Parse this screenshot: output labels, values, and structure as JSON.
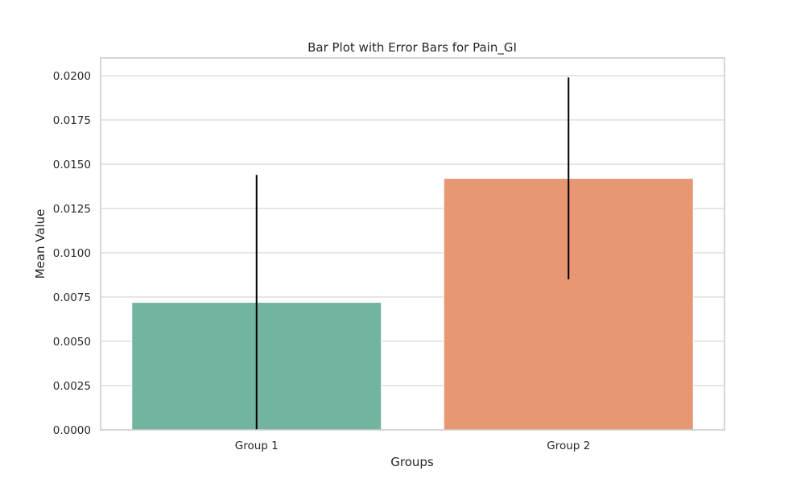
{
  "chart_data": {
    "type": "bar",
    "title": "Bar Plot with Error Bars for Pain_GI",
    "xlabel": "Groups",
    "ylabel": "Mean Value",
    "categories": [
      "Group 1",
      "Group 2"
    ],
    "values": [
      0.0072,
      0.0142
    ],
    "error_bars": [
      {
        "low": 0.0,
        "high": 0.0144
      },
      {
        "low": 0.0085,
        "high": 0.0199
      }
    ],
    "colors": [
      "#73b4a0",
      "#e89774"
    ],
    "error_color": "#000000",
    "ylim": [
      0,
      0.021
    ],
    "yticks": [
      0.0,
      0.0025,
      0.005,
      0.0075,
      0.01,
      0.0125,
      0.015,
      0.0175,
      0.02
    ],
    "ytick_labels": [
      "0.0000",
      "0.0025",
      "0.0050",
      "0.0075",
      "0.0100",
      "0.0125",
      "0.0150",
      "0.0175",
      "0.0200"
    ],
    "grid": true,
    "grid_axis": "y"
  }
}
